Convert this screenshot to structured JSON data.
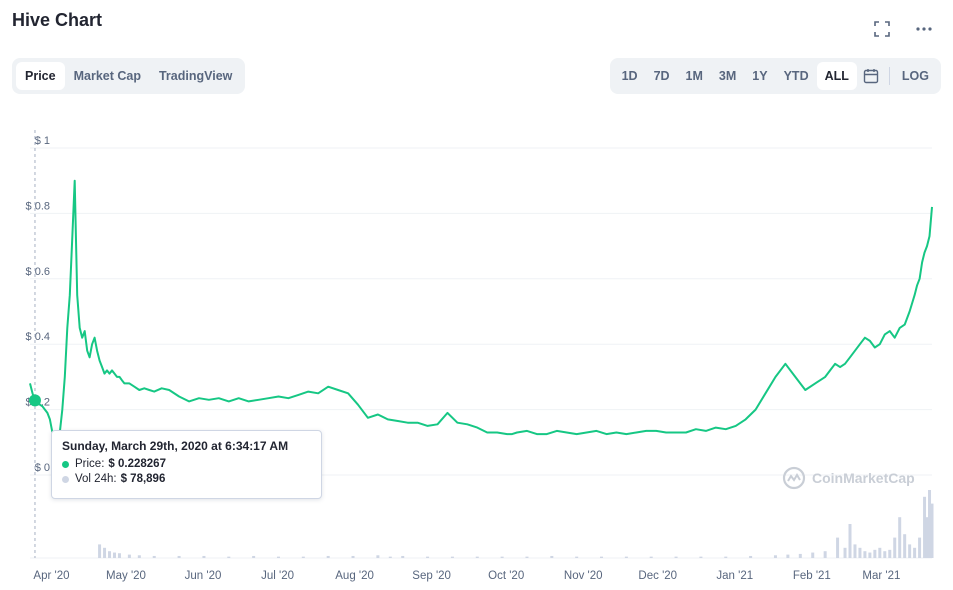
{
  "header": {
    "title": "Hive Chart"
  },
  "icons": {
    "fullscreen": "fullscreen-icon",
    "more": "more-icon",
    "calendar": "calendar-icon",
    "logo": "coinmarketcap-logo-icon"
  },
  "tabs": [
    {
      "label": "Price",
      "active": true
    },
    {
      "label": "Market Cap",
      "active": false
    },
    {
      "label": "TradingView",
      "active": false
    }
  ],
  "ranges": [
    {
      "label": "1D"
    },
    {
      "label": "7D"
    },
    {
      "label": "1M"
    },
    {
      "label": "3M"
    },
    {
      "label": "1Y"
    },
    {
      "label": "YTD"
    },
    {
      "label": "ALL",
      "active": true
    }
  ],
  "log_label": "LOG",
  "tooltip": {
    "date": "Sunday, March 29th, 2020 at 6:34:17 AM",
    "price_label": "Price:",
    "price_value": "$ 0.228267",
    "vol_label": "Vol 24h:",
    "vol_value": "$ 78,896"
  },
  "watermark": "CoinMarketCap",
  "colors": {
    "line": "#16c784",
    "grid": "#eff2f5",
    "volume": "#cfd6e4",
    "text": "#222531",
    "muted": "#58667e"
  },
  "chart_data": {
    "type": "line",
    "title": "Hive Chart",
    "ylim": [
      0,
      1
    ],
    "yticks": [
      {
        "v": 0,
        "label": "$ 0"
      },
      {
        "v": 0.2,
        "label": "$ 0.2"
      },
      {
        "v": 0.4,
        "label": "$ 0.4"
      },
      {
        "v": 0.6,
        "label": "$ 0.6"
      },
      {
        "v": 0.8,
        "label": "$ 0.8"
      },
      {
        "v": 1,
        "label": "$ 1"
      }
    ],
    "xlim": [
      0,
      363
    ],
    "xticks": [
      {
        "d": 3,
        "label": "Apr '20"
      },
      {
        "d": 33,
        "label": "May '20"
      },
      {
        "d": 64,
        "label": "Jun '20"
      },
      {
        "d": 94,
        "label": "Jul '20"
      },
      {
        "d": 125,
        "label": "Aug '20"
      },
      {
        "d": 156,
        "label": "Sep '20"
      },
      {
        "d": 186,
        "label": "Oct '20"
      },
      {
        "d": 217,
        "label": "Nov '20"
      },
      {
        "d": 247,
        "label": "Dec '20"
      },
      {
        "d": 278,
        "label": "Jan '21"
      },
      {
        "d": 309,
        "label": "Feb '21"
      },
      {
        "d": 337,
        "label": "Mar '21"
      }
    ],
    "series": [
      {
        "name": "Price",
        "x": [
          0,
          1,
          2,
          3,
          4,
          5,
          6,
          7,
          8,
          9,
          10,
          11,
          12,
          13,
          14,
          15,
          16,
          17,
          18,
          19,
          20,
          21,
          22,
          23,
          24,
          25,
          26,
          27,
          28,
          29,
          30,
          31,
          32,
          33,
          34,
          35,
          36,
          37,
          38,
          40,
          42,
          44,
          46,
          48,
          50,
          53,
          56,
          60,
          64,
          68,
          72,
          76,
          80,
          84,
          88,
          92,
          96,
          100,
          104,
          108,
          112,
          116,
          120,
          124,
          128,
          132,
          136,
          140,
          144,
          148,
          152,
          156,
          160,
          164,
          168,
          172,
          176,
          180,
          184,
          188,
          192,
          194,
          196,
          200,
          204,
          208,
          212,
          216,
          220,
          224,
          228,
          232,
          236,
          240,
          244,
          248,
          252,
          256,
          260,
          264,
          268,
          272,
          276,
          280,
          284,
          288,
          292,
          296,
          300,
          304,
          308,
          312,
          316,
          318,
          320,
          322,
          324,
          326,
          328,
          330,
          332,
          334,
          336,
          338,
          340,
          342,
          344,
          346,
          348,
          350,
          352,
          354,
          356,
          357,
          358,
          359,
          360,
          361,
          362,
          363
        ],
        "y": [
          0.28,
          0.25,
          0.228,
          0.22,
          0.215,
          0.21,
          0.2,
          0.19,
          0.17,
          0.13,
          0.1,
          0.11,
          0.13,
          0.2,
          0.3,
          0.45,
          0.55,
          0.72,
          0.9,
          0.55,
          0.45,
          0.42,
          0.44,
          0.38,
          0.36,
          0.4,
          0.42,
          0.38,
          0.35,
          0.33,
          0.31,
          0.32,
          0.31,
          0.32,
          0.31,
          0.3,
          0.3,
          0.29,
          0.28,
          0.28,
          0.27,
          0.26,
          0.265,
          0.26,
          0.255,
          0.265,
          0.26,
          0.24,
          0.225,
          0.235,
          0.23,
          0.235,
          0.225,
          0.235,
          0.225,
          0.23,
          0.235,
          0.24,
          0.235,
          0.245,
          0.255,
          0.25,
          0.27,
          0.26,
          0.25,
          0.215,
          0.175,
          0.185,
          0.17,
          0.165,
          0.16,
          0.16,
          0.15,
          0.155,
          0.19,
          0.16,
          0.155,
          0.145,
          0.13,
          0.13,
          0.125,
          0.125,
          0.13,
          0.135,
          0.125,
          0.125,
          0.135,
          0.13,
          0.125,
          0.13,
          0.135,
          0.125,
          0.13,
          0.125,
          0.13,
          0.135,
          0.135,
          0.13,
          0.13,
          0.13,
          0.14,
          0.135,
          0.145,
          0.14,
          0.15,
          0.17,
          0.2,
          0.25,
          0.3,
          0.34,
          0.3,
          0.26,
          0.28,
          0.29,
          0.3,
          0.32,
          0.34,
          0.33,
          0.34,
          0.36,
          0.38,
          0.4,
          0.42,
          0.41,
          0.39,
          0.4,
          0.43,
          0.44,
          0.42,
          0.45,
          0.46,
          0.5,
          0.55,
          0.58,
          0.6,
          0.65,
          0.68,
          0.7,
          0.73,
          0.82
        ]
      }
    ],
    "volume": {
      "name": "Vol 24h",
      "x": [
        28,
        30,
        32,
        34,
        36,
        40,
        44,
        50,
        60,
        70,
        80,
        90,
        100,
        110,
        120,
        130,
        140,
        145,
        150,
        160,
        170,
        180,
        190,
        200,
        210,
        220,
        230,
        240,
        250,
        260,
        270,
        280,
        290,
        300,
        305,
        310,
        315,
        320,
        325,
        328,
        330,
        332,
        334,
        336,
        338,
        340,
        342,
        344,
        346,
        348,
        350,
        352,
        354,
        356,
        358,
        360,
        361,
        362,
        363
      ],
      "v": [
        0.2,
        0.15,
        0.1,
        0.08,
        0.07,
        0.05,
        0.04,
        0.03,
        0.03,
        0.03,
        0.02,
        0.03,
        0.02,
        0.02,
        0.03,
        0.03,
        0.04,
        0.02,
        0.03,
        0.02,
        0.02,
        0.02,
        0.02,
        0.02,
        0.03,
        0.02,
        0.02,
        0.02,
        0.02,
        0.02,
        0.02,
        0.02,
        0.03,
        0.04,
        0.05,
        0.06,
        0.08,
        0.1,
        0.3,
        0.15,
        0.5,
        0.2,
        0.15,
        0.1,
        0.08,
        0.12,
        0.15,
        0.1,
        0.12,
        0.3,
        0.6,
        0.35,
        0.2,
        0.15,
        0.3,
        0.9,
        0.6,
        1.0,
        0.8
      ],
      "max_label_value": 1
    },
    "hover": {
      "d": 2,
      "price": 0.228267
    }
  }
}
